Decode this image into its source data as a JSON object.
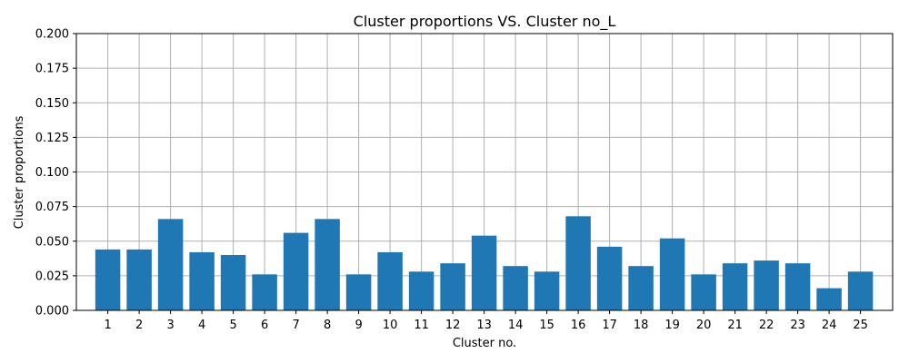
{
  "chart_data": {
    "type": "bar",
    "title": "Cluster proportions VS. Cluster no_L",
    "xlabel": "Cluster no.",
    "ylabel": "Cluster proportions",
    "categories": [
      "1",
      "2",
      "3",
      "4",
      "5",
      "6",
      "7",
      "8",
      "9",
      "10",
      "11",
      "12",
      "13",
      "14",
      "15",
      "16",
      "17",
      "18",
      "19",
      "20",
      "21",
      "22",
      "23",
      "24",
      "25"
    ],
    "values": [
      0.044,
      0.044,
      0.066,
      0.042,
      0.04,
      0.026,
      0.056,
      0.066,
      0.026,
      0.042,
      0.028,
      0.034,
      0.054,
      0.032,
      0.028,
      0.068,
      0.046,
      0.032,
      0.052,
      0.026,
      0.034,
      0.036,
      0.034,
      0.016,
      0.028
    ],
    "ylim": [
      0,
      0.2
    ],
    "yticks": [
      "0.000",
      "0.025",
      "0.050",
      "0.075",
      "0.100",
      "0.125",
      "0.150",
      "0.175",
      "0.200"
    ],
    "grid": true,
    "bar_color": "#1f77b4"
  }
}
